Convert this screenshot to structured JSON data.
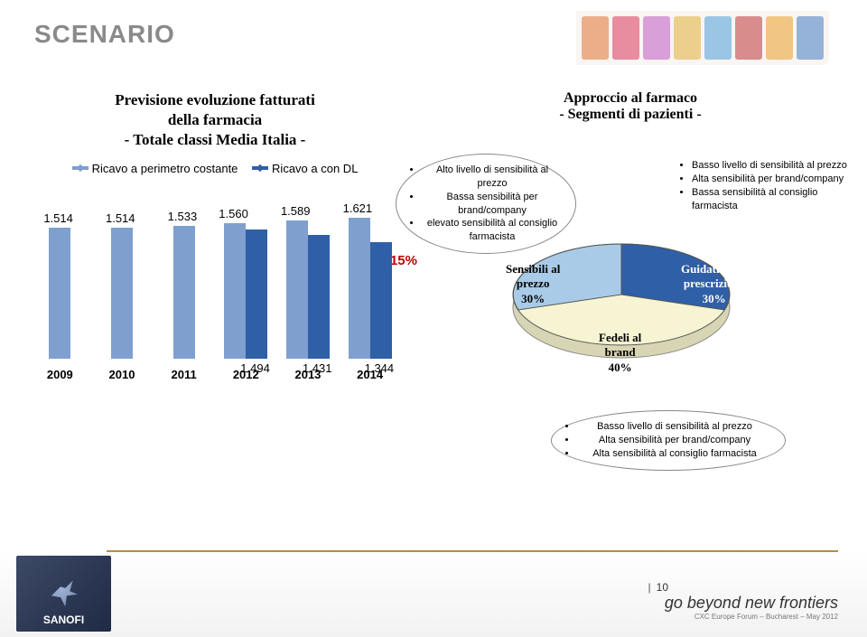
{
  "title": "SCENARIO",
  "chart": {
    "title_l1": "Previsione evoluzione fatturati",
    "title_l2": "della farmacia",
    "title_l3": "- Totale classi Media Italia -",
    "legend1": "Ricavo a perimetro costante",
    "legend2": "Ricavo a con DL",
    "color1": "#7f9fcf",
    "color2": "#2f5fa6",
    "pct_color": "#c00000",
    "pct_label": "-15%",
    "years": [
      "2009",
      "2010",
      "2011",
      "2012",
      "2013",
      "2014"
    ],
    "series1": [
      "1.514",
      "1.514",
      "1.533",
      "1.560",
      "1.589",
      "1.621"
    ],
    "series2": [
      "",
      "",
      "",
      "1.494",
      "1.431",
      "1.344"
    ],
    "h1": [
      145,
      145,
      147,
      150,
      153,
      156
    ],
    "h2": [
      0,
      0,
      0,
      143,
      137,
      129
    ]
  },
  "pie": {
    "title_l1": "Approccio al farmaco",
    "title_l2": "- Segmenti di pazienti -",
    "slice1_color": "#a9cbe8",
    "slice2_color": "#2f5fa6",
    "slice3_color": "#f7f4d3",
    "stroke": "#555555",
    "seg1_l1": "Sensibili al",
    "seg1_l2": "prezzo",
    "seg1_l3": "30%",
    "seg2_l1": "Guidati dalla",
    "seg2_l2": "prescrizione",
    "seg2_l3": "30%",
    "seg3_l1": "Fedeli al",
    "seg3_l2": "brand",
    "seg3_l3": "40%",
    "call_tl_1": "Alto livello di sensibilità al prezzo",
    "call_tl_2": "Bassa sensibilità per brand/company",
    "call_tl_3": "elevato sensibilità al consiglio farmacista",
    "call_tr_1": "Basso livello di sensibilità al prezzo",
    "call_tr_2": "Alta sensibilità per brand/company",
    "call_tr_3": "Bassa sensibilità al consiglio farmacista",
    "call_b_1": "Basso livello di sensibilità al prezzo",
    "call_b_2": "Alta sensibilità per brand/company",
    "call_b_3": "Alta sensibilità al consiglio farmacista"
  },
  "footer": {
    "brand": "SANOFI",
    "tagline": "go beyond new frontiers",
    "sub": "CXC Europe Forum – Bucharest – May 2012",
    "page": "10"
  },
  "product_colors": [
    "#e07a3a",
    "#d94060",
    "#c060c0",
    "#e0b040",
    "#5a9fd4",
    "#c04040",
    "#e8a030",
    "#5080c0"
  ]
}
